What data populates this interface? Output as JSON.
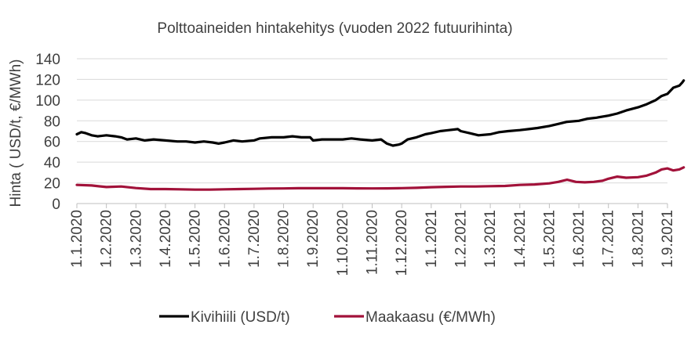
{
  "chart_data": {
    "type": "line",
    "title": "Polttoaineiden hintakehitys (vuoden 2022 futuurihinta)",
    "xlabel": "",
    "ylabel": "Hinta ( USD/t, €/MWh)",
    "ylim": [
      0,
      140
    ],
    "yticks": [
      0,
      20,
      40,
      60,
      80,
      100,
      120,
      140
    ],
    "grid": "horizontal",
    "legend": "bottom",
    "x": [
      "1.1.2020",
      "1.2.2020",
      "1.3.2020",
      "1.4.2020",
      "1.5.2020",
      "1.6.2020",
      "1.7.2020",
      "1.8.2020",
      "1.9.2020",
      "1.10.2020",
      "1.11.2020",
      "1.12.2020",
      "1.1.2021",
      "1.2.2021",
      "1.3.2021",
      "1.4.2021",
      "1.5.2021",
      "1.6.2021",
      "1.7.2021",
      "1.8.2021",
      "1.9.2021"
    ],
    "series": [
      {
        "name": "Kivihiili (USD/t)",
        "color": "#000000",
        "values": [
          [
            0,
            67
          ],
          [
            0.15,
            69
          ],
          [
            0.3,
            68
          ],
          [
            0.5,
            66
          ],
          [
            0.7,
            65
          ],
          [
            1,
            66
          ],
          [
            1.3,
            65
          ],
          [
            1.5,
            64
          ],
          [
            1.7,
            62
          ],
          [
            2,
            63
          ],
          [
            2.3,
            61
          ],
          [
            2.6,
            62
          ],
          [
            3,
            61
          ],
          [
            3.4,
            60
          ],
          [
            3.7,
            60
          ],
          [
            4,
            59
          ],
          [
            4.3,
            60
          ],
          [
            4.6,
            59
          ],
          [
            4.8,
            58
          ],
          [
            5,
            59
          ],
          [
            5.3,
            61
          ],
          [
            5.6,
            60
          ],
          [
            6,
            61
          ],
          [
            6.2,
            63
          ],
          [
            6.6,
            64
          ],
          [
            7,
            64
          ],
          [
            7.3,
            65
          ],
          [
            7.6,
            64
          ],
          [
            7.9,
            64
          ],
          [
            8,
            61
          ],
          [
            8.3,
            62
          ],
          [
            8.6,
            62
          ],
          [
            9,
            62
          ],
          [
            9.3,
            63
          ],
          [
            9.6,
            62
          ],
          [
            10,
            61
          ],
          [
            10.3,
            62
          ],
          [
            10.5,
            58
          ],
          [
            10.7,
            56
          ],
          [
            10.9,
            57
          ],
          [
            11,
            58
          ],
          [
            11.2,
            62
          ],
          [
            11.5,
            64
          ],
          [
            11.8,
            67
          ],
          [
            12,
            68
          ],
          [
            12.3,
            70
          ],
          [
            12.6,
            71
          ],
          [
            12.9,
            72
          ],
          [
            13,
            70
          ],
          [
            13.3,
            68
          ],
          [
            13.6,
            66
          ],
          [
            14,
            67
          ],
          [
            14.3,
            69
          ],
          [
            14.6,
            70
          ],
          [
            15,
            71
          ],
          [
            15.3,
            72
          ],
          [
            15.6,
            73
          ],
          [
            16,
            75
          ],
          [
            16.3,
            77
          ],
          [
            16.6,
            79
          ],
          [
            17,
            80
          ],
          [
            17.3,
            82
          ],
          [
            17.6,
            83
          ],
          [
            18,
            85
          ],
          [
            18.3,
            87
          ],
          [
            18.6,
            90
          ],
          [
            19,
            93
          ],
          [
            19.3,
            96
          ],
          [
            19.6,
            100
          ],
          [
            19.8,
            104
          ],
          [
            20,
            106
          ],
          [
            20.2,
            112
          ],
          [
            20.4,
            114
          ],
          [
            20.5,
            117
          ],
          [
            20.55,
            119
          ]
        ]
      },
      {
        "name": "Maakaasu (€/MWh)",
        "color": "#a2123a",
        "values": [
          [
            0,
            18
          ],
          [
            0.5,
            17.5
          ],
          [
            1,
            16
          ],
          [
            1.5,
            16.5
          ],
          [
            2,
            15
          ],
          [
            2.5,
            14
          ],
          [
            3,
            14
          ],
          [
            3.5,
            13.8
          ],
          [
            4,
            13.5
          ],
          [
            4.5,
            13.5
          ],
          [
            5,
            13.8
          ],
          [
            5.5,
            14
          ],
          [
            6,
            14.2
          ],
          [
            6.5,
            14.5
          ],
          [
            7,
            14.6
          ],
          [
            7.5,
            14.8
          ],
          [
            8,
            14.8
          ],
          [
            8.5,
            14.8
          ],
          [
            9,
            14.8
          ],
          [
            9.5,
            14.7
          ],
          [
            10,
            14.6
          ],
          [
            10.5,
            14.7
          ],
          [
            11,
            14.9
          ],
          [
            11.5,
            15.2
          ],
          [
            12,
            15.8
          ],
          [
            12.5,
            16.2
          ],
          [
            13,
            16.5
          ],
          [
            13.5,
            16.5
          ],
          [
            14,
            16.8
          ],
          [
            14.5,
            17
          ],
          [
            15,
            18
          ],
          [
            15.5,
            18.5
          ],
          [
            16,
            19.5
          ],
          [
            16.3,
            21
          ],
          [
            16.6,
            23
          ],
          [
            16.9,
            21
          ],
          [
            17.2,
            20.5
          ],
          [
            17.5,
            21
          ],
          [
            17.8,
            22
          ],
          [
            18,
            24
          ],
          [
            18.3,
            26
          ],
          [
            18.6,
            25
          ],
          [
            19,
            25.5
          ],
          [
            19.3,
            27
          ],
          [
            19.6,
            30
          ],
          [
            19.8,
            33
          ],
          [
            20,
            34
          ],
          [
            20.2,
            32
          ],
          [
            20.4,
            33
          ],
          [
            20.55,
            35
          ]
        ]
      }
    ]
  }
}
